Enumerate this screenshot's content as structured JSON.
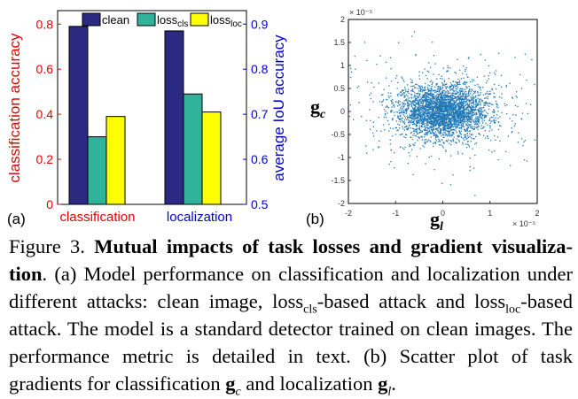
{
  "panel_a": {
    "label": "(a)",
    "left_axis_label": "classification accuracy",
    "right_axis_label": "average IoU accuracy",
    "left_axis_color": "#e60000",
    "right_axis_color": "#0000d0",
    "group_label_colors": [
      "#e60000",
      "#0000d0"
    ]
  },
  "panel_b": {
    "label": "(b)",
    "xlabel_base": "g",
    "xlabel_sub": "l",
    "ylabel_base": "g",
    "ylabel_sub": "c",
    "x_exponent": "× 10⁻⁵",
    "y_exponent": "× 10⁻⁵",
    "point_color": "#1f77b4"
  },
  "chart_data": [
    {
      "type": "bar",
      "categories": [
        "classification",
        "localization"
      ],
      "series": [
        {
          "name": "clean",
          "name_sub": "",
          "color": "#2b2a82",
          "values": [
            0.79,
            0.77
          ]
        },
        {
          "name": "loss",
          "name_sub": "cls",
          "color": "#2fb39a",
          "values": [
            0.3,
            0.49
          ]
        },
        {
          "name": "loss",
          "name_sub": "loc",
          "color": "#ffff00",
          "values": [
            0.39,
            0.41
          ]
        }
      ],
      "ylabel": "classification accuracy",
      "ylim": [
        0,
        0.86
      ],
      "yticks": [
        "0",
        "0.2",
        "0.4",
        "0.6",
        "0.8"
      ],
      "y2label": "average IoU accuracy",
      "y2lim": [
        0.5,
        0.93
      ],
      "y2ticks": [
        "0.5",
        "0.6",
        "0.7",
        "0.8",
        "0.9"
      ],
      "legend_position": "top"
    },
    {
      "type": "scatter",
      "xlim": [
        -2,
        2
      ],
      "ylim": [
        -2,
        2
      ],
      "xticks": [
        "-2",
        "-1",
        "0",
        "1",
        "2"
      ],
      "yticks": [
        "-2",
        "-1.5",
        "-1",
        "-0.5",
        "0",
        "0.5",
        "1",
        "1.5",
        "2"
      ],
      "xlabel": "g_l",
      "ylabel": "g_c",
      "distribution": {
        "center": [
          0,
          0
        ],
        "spread_x": 0.45,
        "spread_y": 0.28,
        "n_points": 3500
      }
    }
  ],
  "caption": {
    "prefix": "Figure 3.",
    "title": "Mutual impacts of task losses and gradient visualiza-tion",
    "t1": ". (a) Model performance on classification and localization under different attacks: clean image, loss",
    "t1_sub": "cls",
    "t2": "-based attack and loss",
    "t2_sub": "loc",
    "t3": "-based attack. The model is a standard detector trained on clean images. The performance metric is detailed in text. (b) Scatter plot of task gradients for classification ",
    "gc": "g",
    "gc_sub": "c",
    "t4": " and localization ",
    "gl": "g",
    "gl_sub": "l",
    "t5": "."
  }
}
